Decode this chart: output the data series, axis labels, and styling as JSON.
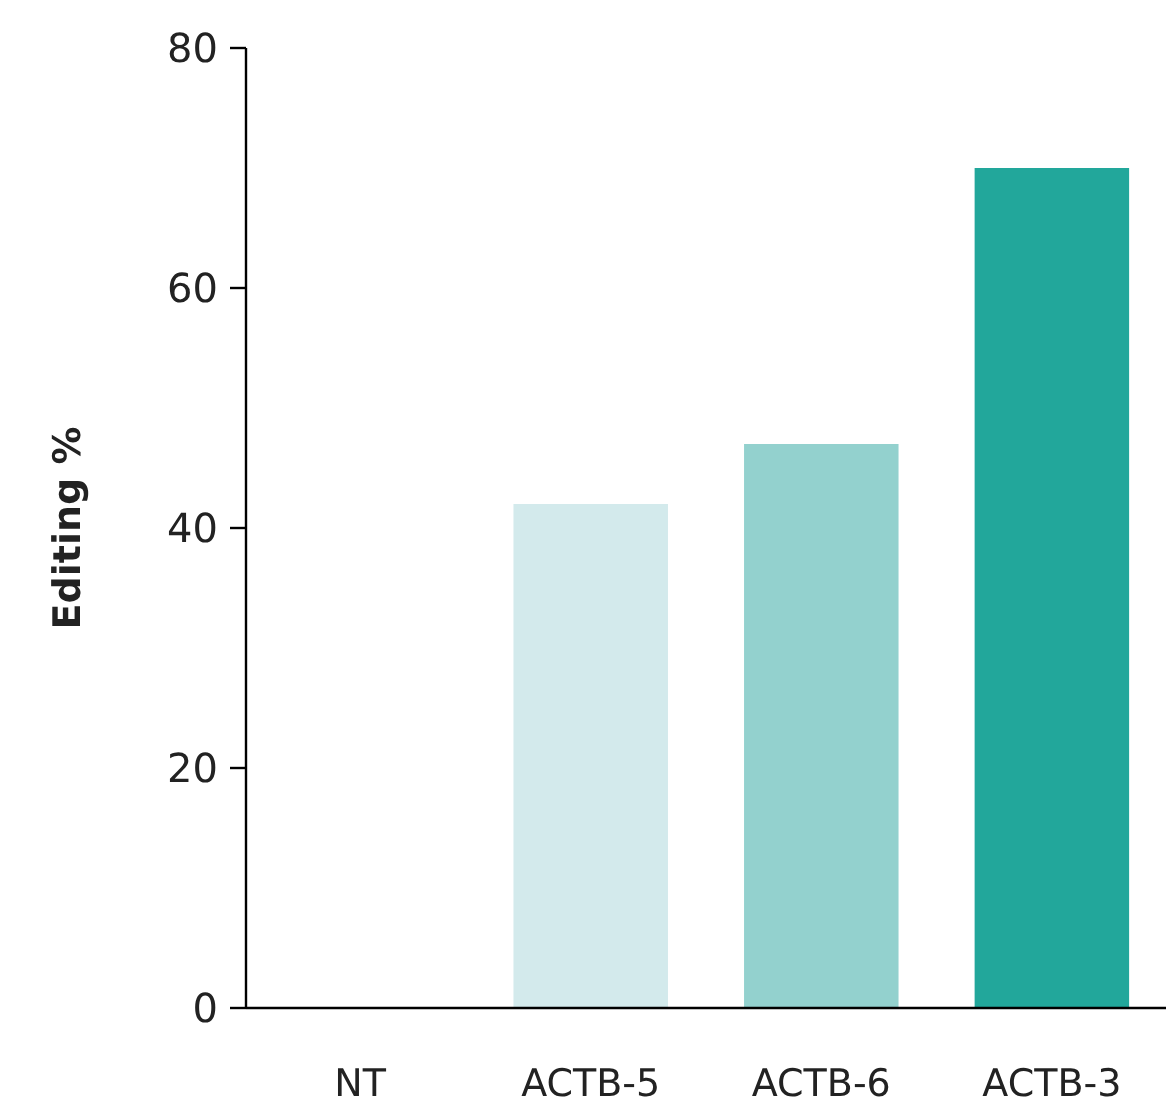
{
  "chart_data": {
    "type": "bar",
    "ylabel": "Editing %",
    "categories": [
      "NT",
      "ACTB-5",
      "ACTB-6",
      "ACTB-3"
    ],
    "values": [
      0,
      42,
      47,
      70
    ],
    "colors": [
      "#d3eaec",
      "#d3eaec",
      "#93d1ce",
      "#22a79b"
    ],
    "ylim": [
      0,
      80
    ],
    "yticks": [
      0,
      20,
      40,
      60,
      80
    ],
    "grid": false
  }
}
